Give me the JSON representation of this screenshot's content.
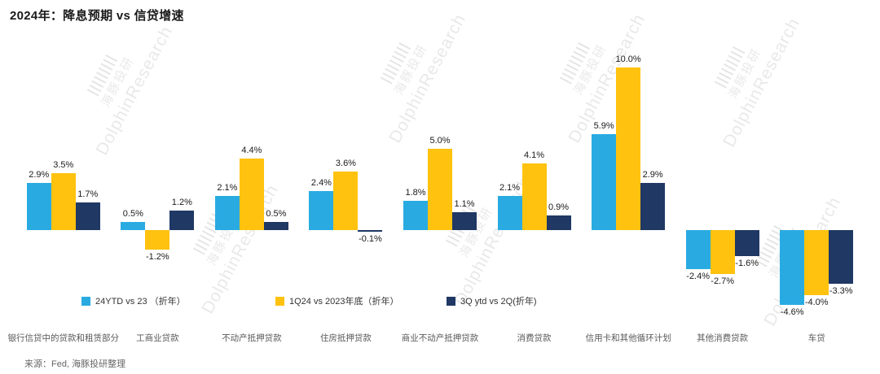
{
  "title": "2024年：降息预期 vs 信贷增速",
  "source": "来源：Fed, 海豚投研整理",
  "watermark": {
    "cn": "海豚投研",
    "en": "DolphinResearch"
  },
  "colors": {
    "series1": "#29ABE2",
    "series2": "#FFC20E",
    "series3": "#1F3864",
    "value_label": "#1A1A1A",
    "category_label": "#595959"
  },
  "chart_data": {
    "type": "bar",
    "title": "2024年：降息预期 vs 信贷增速",
    "categories": [
      "银行信贷中的贷款和租赁部分",
      "工商业贷款",
      "不动产抵押贷款",
      "住房抵押贷款",
      "商业不动产抵押贷款",
      "消费贷款",
      "信用卡和其他循环计划",
      "其他消费贷款",
      "车贷"
    ],
    "series": [
      {
        "name": "24YTD vs 23 （折年）",
        "color": "#29ABE2",
        "values": [
          2.9,
          0.5,
          2.1,
          2.4,
          1.8,
          2.1,
          5.9,
          -2.4,
          -4.6
        ]
      },
      {
        "name": "1Q24 vs 2023年底（折年）",
        "color": "#FFC20E",
        "values": [
          3.5,
          -1.2,
          4.4,
          3.6,
          5.0,
          4.1,
          10.0,
          -2.7,
          -4.0
        ]
      },
      {
        "name": "3Q ytd vs 2Q(折年)",
        "color": "#1F3864",
        "values": [
          1.7,
          1.2,
          0.5,
          -0.1,
          1.1,
          0.9,
          2.9,
          -1.6,
          -3.3
        ]
      }
    ],
    "ylim": [
      -5,
      10.5
    ],
    "grid": false,
    "legend_position": "bottom-left",
    "value_label_format": "one_decimal_percent"
  }
}
